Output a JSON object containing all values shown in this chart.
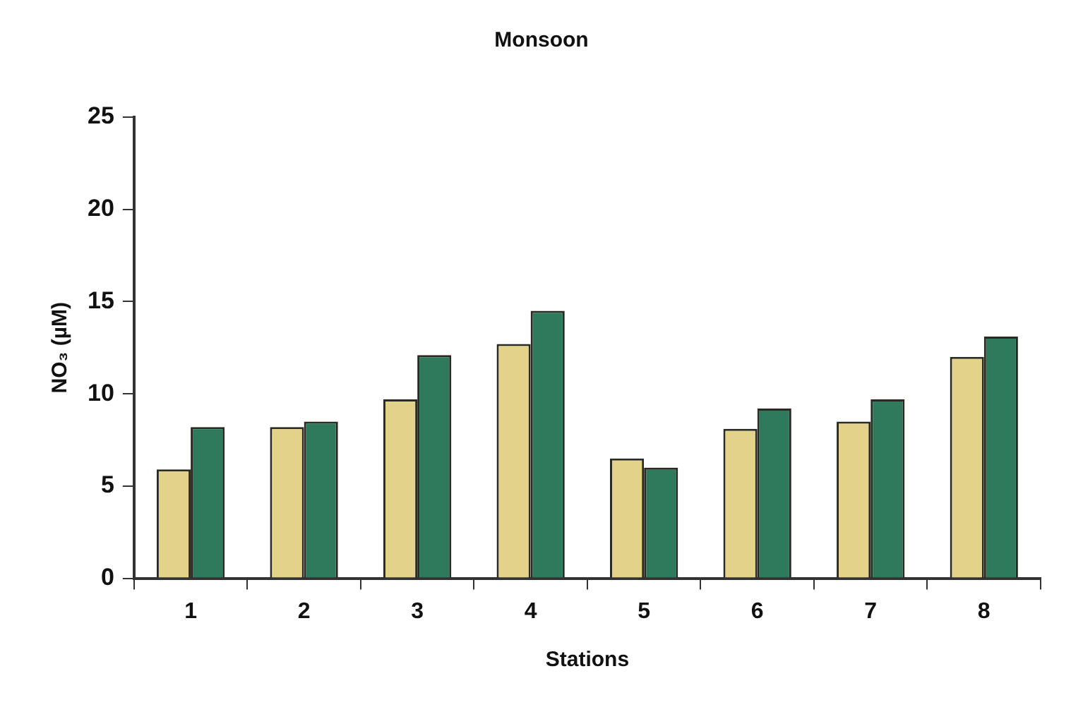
{
  "chart_data": {
    "type": "bar",
    "title": "Monsoon",
    "xlabel": "Stations",
    "ylabel": "NO₃ (µM)",
    "categories": [
      "1",
      "2",
      "3",
      "4",
      "5",
      "6",
      "7",
      "8"
    ],
    "series": [
      {
        "color": "#e3d38a",
        "values": [
          5.9,
          8.2,
          9.7,
          12.7,
          6.5,
          8.1,
          8.5,
          12.0
        ]
      },
      {
        "color": "#2f7a5c",
        "values": [
          8.2,
          8.5,
          12.1,
          14.5,
          6.0,
          9.2,
          9.7,
          13.1
        ]
      }
    ],
    "ylim": [
      0,
      25
    ],
    "yticks": [
      0,
      5,
      10,
      15,
      20,
      25
    ],
    "grid": false,
    "legend": false
  }
}
